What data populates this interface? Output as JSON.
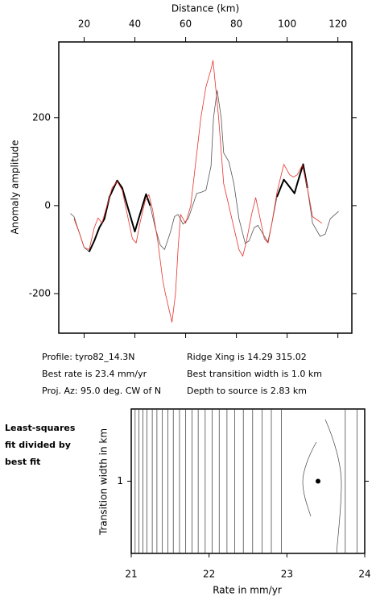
{
  "chart_data": [
    {
      "type": "line",
      "xlabel": "Distance (km)",
      "ylabel": "Anomaly amplitude",
      "xlim": [
        10,
        125.5
      ],
      "xticks": [
        20,
        40,
        60,
        80,
        100,
        120
      ],
      "ylim": [
        -290,
        372
      ],
      "yticks": [
        -200,
        0,
        200
      ],
      "series": [
        {
          "color": "#555555",
          "line_width": 0.8,
          "x": [
            14.6,
            16,
            18,
            20,
            22,
            24,
            26,
            28,
            30,
            33,
            35,
            37,
            40,
            42,
            44.4,
            46,
            48,
            50,
            51.7,
            54,
            55.6,
            57,
            59,
            61,
            64.4,
            66,
            68,
            70,
            71,
            72.4,
            74,
            75,
            77,
            79,
            81,
            83.5,
            85,
            87,
            88.5,
            90,
            92.4,
            94,
            96,
            98.7,
            100,
            102.9,
            104,
            106.3,
            108,
            110,
            113,
            115,
            117,
            120.3
          ],
          "values": [
            -18,
            -25,
            -60,
            -95,
            -105,
            -80,
            -50,
            -30,
            20,
            57,
            40,
            0,
            -59,
            -20,
            26,
            0,
            -50,
            -90,
            -100,
            -60,
            -25,
            -20,
            -42,
            -30,
            28,
            30,
            35,
            90,
            200,
            262,
            200,
            120,
            100,
            50,
            -30,
            -86,
            -80,
            -50,
            -45,
            -60,
            -83,
            -40,
            20,
            59,
            50,
            28,
            50,
            94,
            40,
            -40,
            -70,
            -65,
            -30,
            -13
          ]
        },
        {
          "color": "#000000",
          "line_width": 2,
          "x": [
            22,
            24,
            26,
            28,
            30,
            33,
            35,
            37,
            40,
            42,
            44.4,
            46,
            70,
            96,
            98.7,
            100,
            102.9,
            104,
            106.3,
            108
          ],
          "values": [
            -105,
            -80,
            -50,
            -30,
            20,
            57,
            40,
            0,
            -59,
            -20,
            26,
            0,
            null,
            20,
            59,
            50,
            28,
            50,
            94,
            40
          ]
        },
        {
          "color": "#e8332a",
          "line_width": 0.8,
          "x": [
            16,
            18,
            20,
            22,
            24,
            25.5,
            27,
            29,
            31,
            33,
            35,
            37,
            39,
            40.5,
            42,
            44,
            45.5,
            47,
            49,
            51,
            52,
            54.6,
            56,
            57,
            58,
            60,
            62,
            64,
            66,
            68,
            70,
            70.8,
            73,
            75,
            77,
            79,
            81,
            82.5,
            84,
            86,
            87.6,
            89,
            91,
            92.5,
            94,
            96,
            98.7,
            101,
            102.5,
            104,
            106,
            108,
            110,
            113.7
          ],
          "values": [
            -30,
            -60,
            -95,
            -100,
            -50,
            -28,
            -40,
            0,
            40,
            55,
            35,
            -20,
            -75,
            -85,
            -40,
            10,
            25,
            -10,
            -80,
            -170,
            -200,
            -265,
            -200,
            -100,
            -20,
            -40,
            0,
            100,
            200,
            270,
            310,
            330,
            200,
            50,
            0,
            -50,
            -100,
            -115,
            -80,
            -20,
            18,
            -20,
            -75,
            -85,
            -40,
            30,
            94,
            70,
            65,
            70,
            92,
            40,
            -25,
            -40
          ]
        }
      ],
      "annotations": [
        "Profile: tyro82_14.3N",
        "Best rate is 23.4 mm/yr",
        "Proj. Az: 95.0 deg. CW of N",
        "Ridge Xing is 14.29 315.02",
        "Best transition width is 1.0 km",
        "Depth to source is   2.83 km"
      ]
    },
    {
      "type": "contour",
      "xlabel": "Rate in mm/yr",
      "ylabel": "Transition width in km",
      "xlim": [
        21,
        24
      ],
      "xticks": [
        21,
        22,
        23,
        24
      ],
      "ylim": [
        0.5,
        1.5
      ],
      "yticks": [
        1
      ],
      "contour_rates": [
        21.05,
        21.1,
        21.15,
        21.2,
        21.27,
        21.33,
        21.4,
        21.47,
        21.54,
        21.62,
        21.7,
        21.78,
        21.86,
        21.95,
        22.04,
        22.13,
        22.23,
        22.33,
        22.44,
        22.56,
        22.68,
        22.8,
        22.93,
        23.75,
        23.9
      ],
      "points": {
        "x": [
          23.4
        ],
        "y": [
          1
        ]
      },
      "annotations": [
        "Least-squares",
        "fit divided by",
        "best fit"
      ]
    }
  ]
}
